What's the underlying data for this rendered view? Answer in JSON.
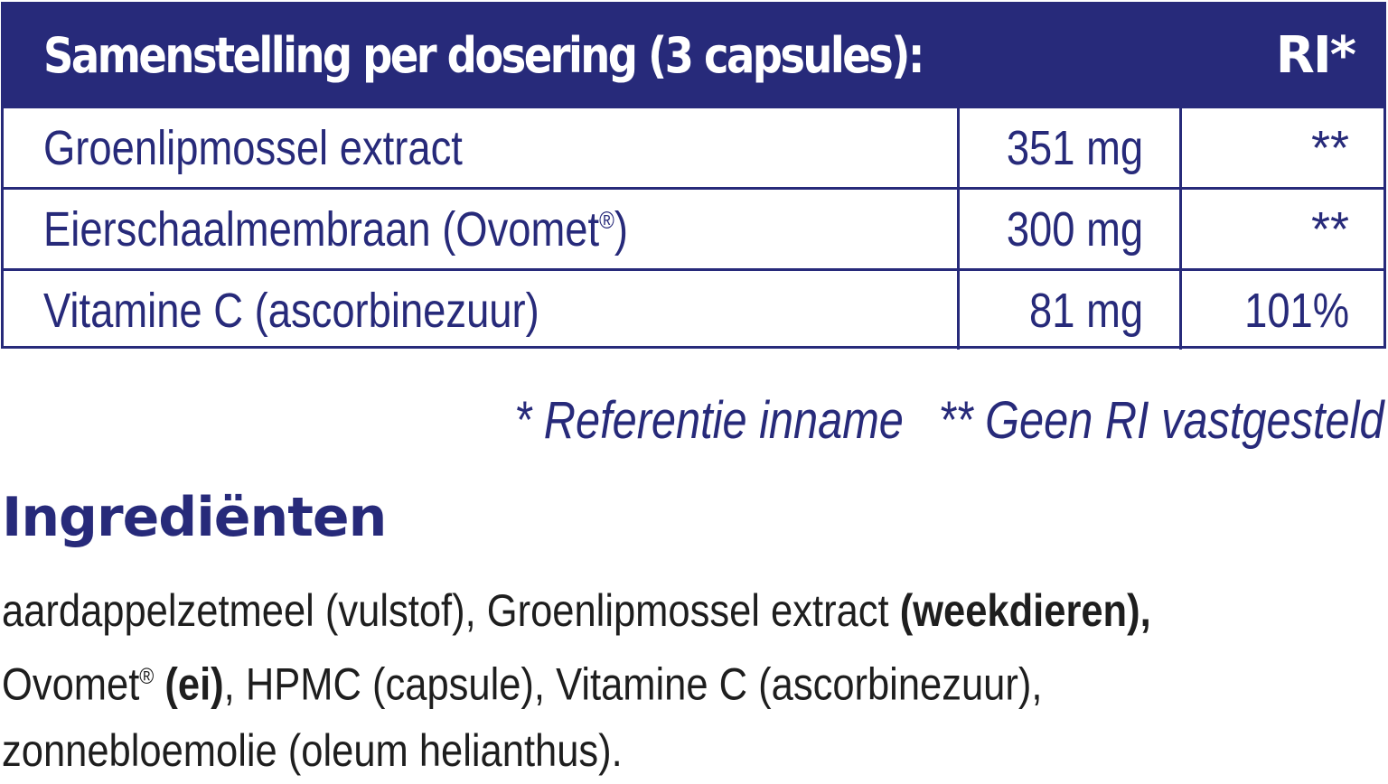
{
  "table": {
    "header": {
      "title": "Samenstelling per dosering (3 capsules):",
      "ri": "RI*"
    },
    "rows": [
      {
        "name": "Groenlipmossel extract",
        "amount": "351 mg",
        "ri": "**"
      },
      {
        "name": "Eierschaalmembraan (Ovomet",
        "name_sup": "®",
        "name_after": ")",
        "amount": "300 mg",
        "ri": "**"
      },
      {
        "name": "Vitamine C (ascorbinezuur)",
        "amount": "81 mg",
        "ri": "101%"
      }
    ]
  },
  "footnotes": {
    "ri": "* Referentie inname",
    "no_ri": "** Geen RI vastgesteld"
  },
  "ingredients": {
    "heading": "Ingrediënten",
    "line1_a": "aardappelzetmeel (vulstof), Groenlipmossel extract ",
    "line1_bold": "(weekdieren),",
    "line2_a": "Ovomet",
    "line2_sup": "®",
    "line2_bold": " (ei)",
    "line2_b": ", HPMC (capsule), Vitamine C (ascorbinezuur),",
    "line3": "zonnebloemolie (oleum helianthus)."
  },
  "colors": {
    "brand_navy": "#272a7a",
    "body_text": "#1e1e1e"
  }
}
